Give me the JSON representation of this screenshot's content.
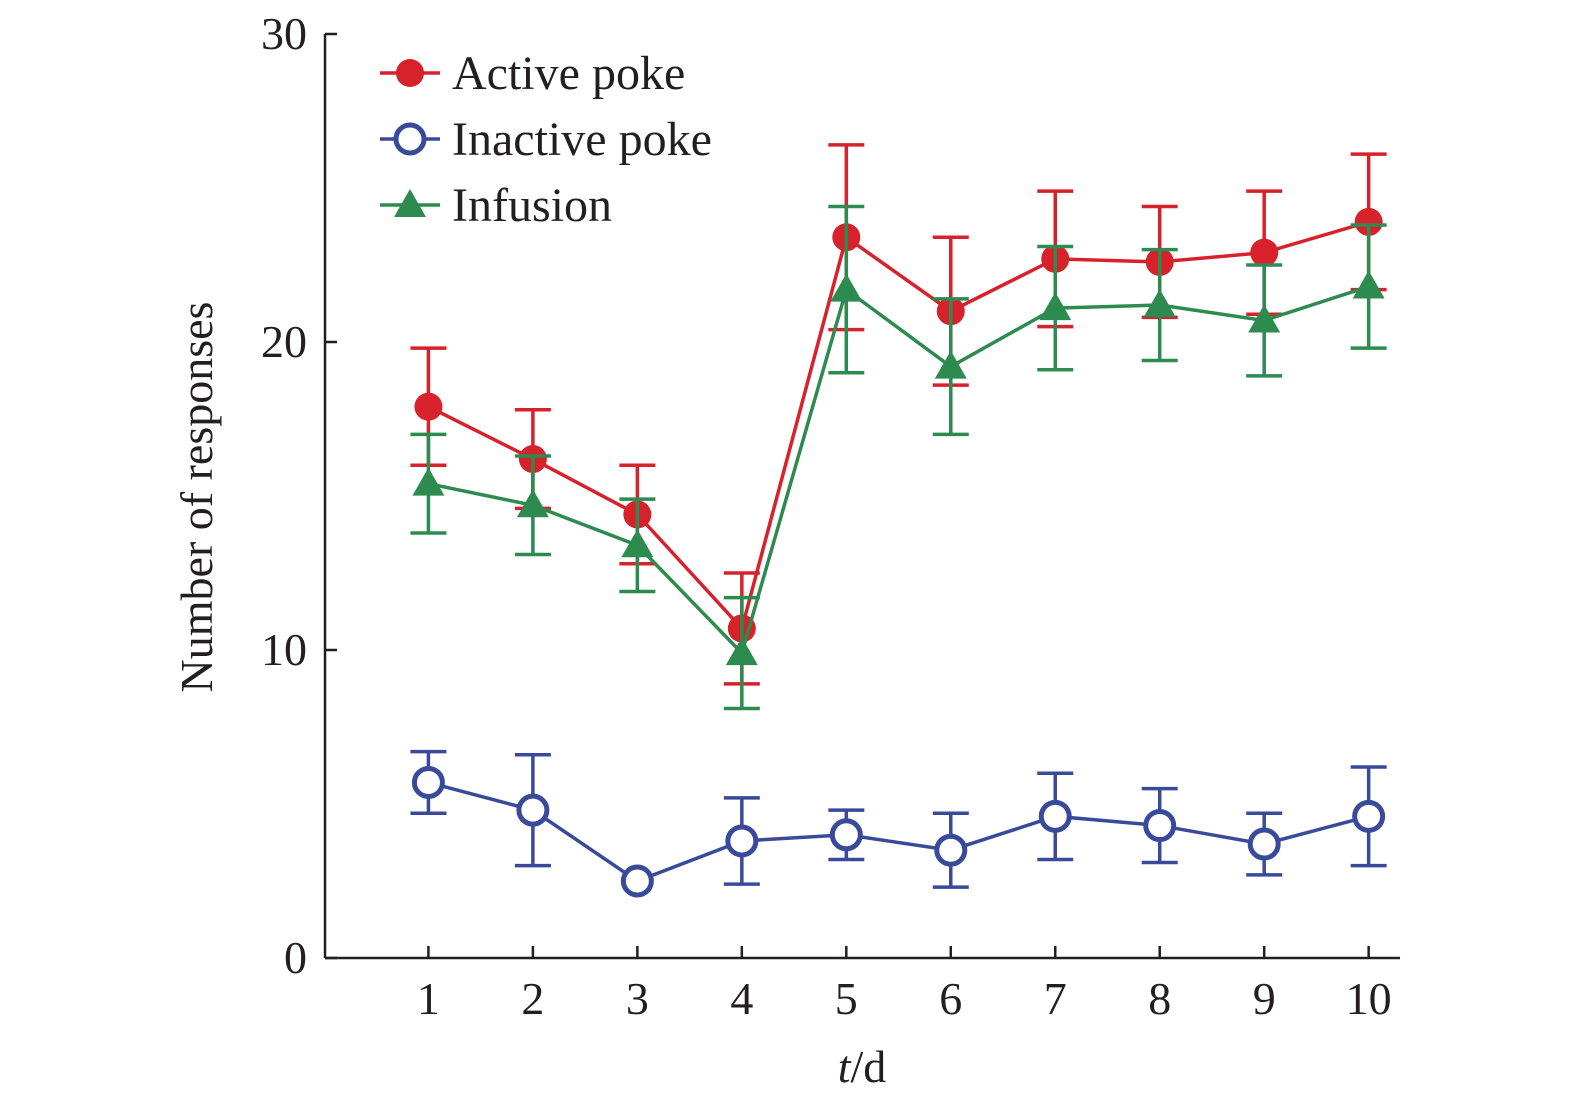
{
  "chart_data": {
    "type": "line",
    "x": [
      1,
      2,
      3,
      4,
      5,
      6,
      7,
      8,
      9,
      10
    ],
    "xticks": [
      "1",
      "2",
      "3",
      "4",
      "5",
      "6",
      "7",
      "8",
      "9",
      "10"
    ],
    "yticks": [
      "0",
      "10",
      "20",
      "30"
    ],
    "ylim": [
      0,
      30
    ],
    "xlim": [
      0.01,
      10.3
    ],
    "xlabel_italic": "t",
    "xlabel_rest": "/d",
    "ylabel": "Number of responses",
    "legend_position": "top-left",
    "grid": false,
    "series": [
      {
        "name": "Active poke",
        "color": "#d7212b",
        "marker": "filled-circle",
        "values": [
          17.9,
          16.2,
          14.4,
          10.7,
          23.4,
          21.0,
          22.7,
          22.6,
          22.9,
          23.9
        ],
        "error": [
          1.9,
          1.6,
          1.6,
          1.8,
          3.0,
          2.4,
          2.2,
          1.8,
          2.0,
          2.2
        ]
      },
      {
        "name": "Inactive poke",
        "color": "#3a4a9a",
        "marker": "open-circle",
        "values": [
          5.7,
          4.8,
          2.5,
          3.8,
          4.0,
          3.5,
          4.6,
          4.3,
          3.7,
          4.6
        ],
        "error": [
          1.0,
          1.8,
          0.0,
          1.4,
          0.8,
          1.2,
          1.4,
          1.2,
          1.0,
          1.6
        ]
      },
      {
        "name": "Infusion",
        "color": "#2e8b4f",
        "marker": "filled-triangle",
        "values": [
          15.4,
          14.7,
          13.4,
          9.9,
          21.7,
          19.2,
          21.1,
          21.2,
          20.7,
          21.8
        ],
        "error": [
          1.6,
          1.6,
          1.5,
          1.8,
          2.7,
          2.2,
          2.0,
          1.8,
          1.8,
          2.0
        ]
      }
    ]
  }
}
